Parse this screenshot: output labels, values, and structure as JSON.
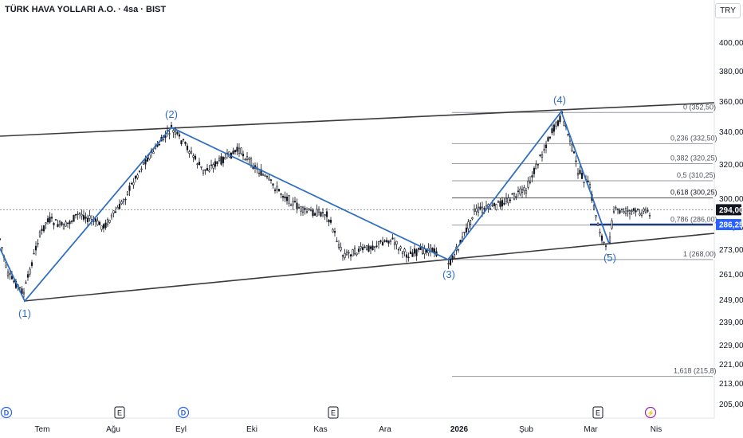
{
  "header": {
    "title": "TÜRK HAVA YOLLARI A.O. · 4sa · BIST"
  },
  "currency_button": "TRY",
  "chart_data": {
    "type": "line",
    "price_axis": {
      "ticks": [
        {
          "value": 400,
          "label": "400,00"
        },
        {
          "value": 380,
          "label": "380,00"
        },
        {
          "value": 360,
          "label": "360,00"
        },
        {
          "value": 340,
          "label": "340,00"
        },
        {
          "value": 320,
          "label": "320,00"
        },
        {
          "value": 300,
          "label": "300,00"
        },
        {
          "value": 285,
          "label": "285,00"
        },
        {
          "value": 273,
          "label": "273,00"
        },
        {
          "value": 261,
          "label": "261,00"
        },
        {
          "value": 249,
          "label": "249,00"
        },
        {
          "value": 239,
          "label": "239,00"
        },
        {
          "value": 229,
          "label": "229,00"
        },
        {
          "value": 221,
          "label": "221,00"
        },
        {
          "value": 213,
          "label": "213,00"
        },
        {
          "value": 205,
          "label": "205,00"
        }
      ],
      "last_price": {
        "value": 294,
        "label": "294,00"
      },
      "crosshair_price": {
        "value": 286.25,
        "label": "286,25"
      }
    },
    "time_axis": [
      {
        "label": "Tem",
        "bold": false
      },
      {
        "label": "Ağu",
        "bold": false
      },
      {
        "label": "Eyl",
        "bold": false
      },
      {
        "label": "Eki",
        "bold": false
      },
      {
        "label": "Kas",
        "bold": false
      },
      {
        "label": "Ara",
        "bold": false
      },
      {
        "label": "2026",
        "bold": true
      },
      {
        "label": "Şub",
        "bold": false
      },
      {
        "label": "Mar",
        "bold": false
      },
      {
        "label": "Nis",
        "bold": false
      }
    ],
    "event_markers": [
      {
        "type": "dividend",
        "label": "D"
      },
      {
        "type": "dividend",
        "label": "D"
      },
      {
        "type": "earnings",
        "label": "E"
      },
      {
        "type": "earnings",
        "label": "E"
      },
      {
        "type": "earnings",
        "label": "E"
      },
      {
        "type": "split",
        "label": "⚡"
      }
    ],
    "elliott_waves": [
      {
        "label": "(1)",
        "price": 249.5
      },
      {
        "label": "(2)",
        "price": 342
      },
      {
        "label": "(3)",
        "price": 268
      },
      {
        "label": "(4)",
        "price": 352.5
      },
      {
        "label": "(5)",
        "price": 272
      }
    ],
    "fibonacci": [
      {
        "ratio": "0",
        "price": 352.5,
        "label": "0 (352,50)"
      },
      {
        "ratio": "0.236",
        "price": 332.5,
        "label": "0,236 (332,50)"
      },
      {
        "ratio": "0.382",
        "price": 320.25,
        "label": "0,382 (320,25)"
      },
      {
        "ratio": "0.5",
        "price": 310.25,
        "label": "0,5 (310,25)"
      },
      {
        "ratio": "0.618",
        "price": 300.25,
        "label": "0,618 (300,25)"
      },
      {
        "ratio": "0.786",
        "price": 286,
        "label": "0,786 (286,00)"
      },
      {
        "ratio": "1",
        "price": 268,
        "label": "1 (268,00)"
      },
      {
        "ratio": "1.618",
        "price": 215.8,
        "label": "1,618 (215,8)"
      }
    ],
    "colors": {
      "wave": "#2f6fc4",
      "candle": "#131722",
      "channel": "#3a3a3a",
      "fib": "#9598a1",
      "price_label_bg": "#131722",
      "crosshair_bg": "#2962ff",
      "dividend": "#2962ff",
      "earnings": "#131722",
      "split": "#9c27b0"
    }
  }
}
